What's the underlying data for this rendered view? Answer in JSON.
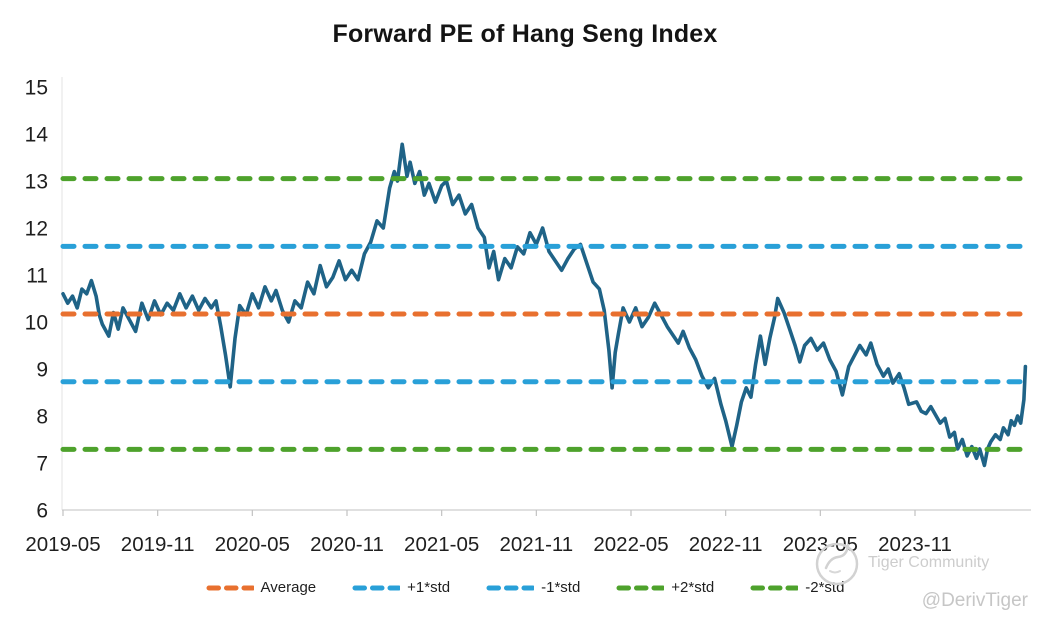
{
  "header": {
    "title": "Forward PE of Hang Seng Index"
  },
  "chart_data": {
    "type": "line",
    "title": "Forward PE of Hang Seng Index",
    "xlabel": "",
    "ylabel": "",
    "ylim": [
      6,
      15
    ],
    "grid": false,
    "legend_position": "bottom",
    "y_ticks": [
      15,
      14,
      13,
      12,
      11,
      10,
      9,
      8,
      7,
      6
    ],
    "x_ticks": [
      {
        "m": 0,
        "label": "2019-05"
      },
      {
        "m": 6,
        "label": "2019-11"
      },
      {
        "m": 12,
        "label": "2020-05"
      },
      {
        "m": 18,
        "label": "2020-11"
      },
      {
        "m": 24,
        "label": "2021-05"
      },
      {
        "m": 30,
        "label": "2021-11"
      },
      {
        "m": 36,
        "label": "2022-05"
      },
      {
        "m": 42,
        "label": "2022-11"
      },
      {
        "m": 48,
        "label": "2023-05"
      },
      {
        "m": 54,
        "label": "2023-11"
      }
    ],
    "ref_lines": [
      {
        "name": "Average",
        "value": 10.17,
        "color": "#e8702f"
      },
      {
        "name": "+1*std",
        "value": 11.61,
        "color": "#29a0d8"
      },
      {
        "name": "-1*std",
        "value": 8.73,
        "color": "#29a0d8"
      },
      {
        "name": "+2*std",
        "value": 13.05,
        "color": "#4ea22c"
      },
      {
        "name": "-2*std",
        "value": 7.29,
        "color": "#4ea22c"
      }
    ],
    "series": [
      {
        "name": "Forward PE",
        "color": "#1f6387",
        "points": [
          [
            0,
            10.6
          ],
          [
            0.3,
            10.4
          ],
          [
            0.6,
            10.55
          ],
          [
            0.9,
            10.3
          ],
          [
            1.2,
            10.7
          ],
          [
            1.5,
            10.6
          ],
          [
            1.8,
            10.88
          ],
          [
            2.1,
            10.55
          ],
          [
            2.3,
            10.15
          ],
          [
            2.5,
            9.95
          ],
          [
            2.9,
            9.7
          ],
          [
            3.2,
            10.2
          ],
          [
            3.5,
            9.85
          ],
          [
            3.8,
            10.3
          ],
          [
            4.2,
            10.05
          ],
          [
            4.6,
            9.8
          ],
          [
            5.0,
            10.4
          ],
          [
            5.4,
            10.05
          ],
          [
            5.8,
            10.45
          ],
          [
            6.2,
            10.15
          ],
          [
            6.6,
            10.4
          ],
          [
            7.0,
            10.25
          ],
          [
            7.4,
            10.6
          ],
          [
            7.8,
            10.3
          ],
          [
            8.2,
            10.55
          ],
          [
            8.6,
            10.25
          ],
          [
            9.0,
            10.5
          ],
          [
            9.4,
            10.3
          ],
          [
            9.7,
            10.45
          ],
          [
            10.0,
            9.9
          ],
          [
            10.3,
            9.3
          ],
          [
            10.6,
            8.62
          ],
          [
            10.9,
            9.65
          ],
          [
            11.2,
            10.35
          ],
          [
            11.6,
            10.15
          ],
          [
            12.0,
            10.6
          ],
          [
            12.4,
            10.3
          ],
          [
            12.8,
            10.75
          ],
          [
            13.2,
            10.45
          ],
          [
            13.5,
            10.67
          ],
          [
            13.9,
            10.25
          ],
          [
            14.3,
            10.0
          ],
          [
            14.7,
            10.45
          ],
          [
            15.1,
            10.3
          ],
          [
            15.5,
            10.85
          ],
          [
            15.9,
            10.6
          ],
          [
            16.3,
            11.2
          ],
          [
            16.7,
            10.75
          ],
          [
            17.1,
            10.95
          ],
          [
            17.5,
            11.3
          ],
          [
            17.9,
            10.9
          ],
          [
            18.3,
            11.1
          ],
          [
            18.7,
            10.9
          ],
          [
            19.1,
            11.45
          ],
          [
            19.5,
            11.7
          ],
          [
            19.9,
            12.15
          ],
          [
            20.3,
            12.0
          ],
          [
            20.7,
            12.85
          ],
          [
            21.0,
            13.2
          ],
          [
            21.2,
            13.0
          ],
          [
            21.5,
            13.78
          ],
          [
            21.8,
            13.1
          ],
          [
            22.0,
            13.4
          ],
          [
            22.3,
            12.95
          ],
          [
            22.6,
            13.2
          ],
          [
            22.9,
            12.7
          ],
          [
            23.2,
            12.95
          ],
          [
            23.6,
            12.55
          ],
          [
            24.0,
            12.9
          ],
          [
            24.3,
            13.0
          ],
          [
            24.7,
            12.5
          ],
          [
            25.1,
            12.7
          ],
          [
            25.5,
            12.3
          ],
          [
            25.9,
            12.5
          ],
          [
            26.3,
            12.0
          ],
          [
            26.7,
            11.8
          ],
          [
            27.0,
            11.15
          ],
          [
            27.3,
            11.5
          ],
          [
            27.6,
            10.9
          ],
          [
            28.0,
            11.35
          ],
          [
            28.4,
            11.15
          ],
          [
            28.8,
            11.6
          ],
          [
            29.2,
            11.45
          ],
          [
            29.6,
            11.9
          ],
          [
            30.0,
            11.65
          ],
          [
            30.4,
            12.0
          ],
          [
            30.8,
            11.5
          ],
          [
            31.2,
            11.3
          ],
          [
            31.6,
            11.1
          ],
          [
            32.0,
            11.35
          ],
          [
            32.4,
            11.55
          ],
          [
            32.8,
            11.65
          ],
          [
            33.2,
            11.25
          ],
          [
            33.6,
            10.85
          ],
          [
            34.0,
            10.7
          ],
          [
            34.3,
            10.25
          ],
          [
            34.6,
            9.4
          ],
          [
            34.8,
            8.6
          ],
          [
            35.0,
            9.35
          ],
          [
            35.2,
            9.75
          ],
          [
            35.5,
            10.3
          ],
          [
            35.9,
            10.0
          ],
          [
            36.3,
            10.3
          ],
          [
            36.7,
            9.9
          ],
          [
            37.1,
            10.1
          ],
          [
            37.5,
            10.4
          ],
          [
            37.9,
            10.15
          ],
          [
            38.3,
            9.9
          ],
          [
            38.7,
            9.7
          ],
          [
            39.0,
            9.55
          ],
          [
            39.3,
            9.8
          ],
          [
            39.7,
            9.45
          ],
          [
            40.1,
            9.2
          ],
          [
            40.5,
            8.85
          ],
          [
            40.9,
            8.6
          ],
          [
            41.3,
            8.8
          ],
          [
            41.7,
            8.25
          ],
          [
            42.0,
            7.9
          ],
          [
            42.4,
            7.35
          ],
          [
            42.7,
            7.8
          ],
          [
            43.0,
            8.3
          ],
          [
            43.3,
            8.6
          ],
          [
            43.6,
            8.4
          ],
          [
            43.9,
            9.1
          ],
          [
            44.2,
            9.7
          ],
          [
            44.5,
            9.1
          ],
          [
            44.8,
            9.65
          ],
          [
            45.1,
            10.1
          ],
          [
            45.3,
            10.5
          ],
          [
            45.7,
            10.2
          ],
          [
            46.0,
            9.9
          ],
          [
            46.4,
            9.5
          ],
          [
            46.7,
            9.15
          ],
          [
            47.0,
            9.5
          ],
          [
            47.4,
            9.65
          ],
          [
            47.8,
            9.4
          ],
          [
            48.2,
            9.55
          ],
          [
            48.6,
            9.2
          ],
          [
            49.0,
            8.95
          ],
          [
            49.4,
            8.45
          ],
          [
            49.8,
            9.05
          ],
          [
            50.1,
            9.25
          ],
          [
            50.5,
            9.5
          ],
          [
            50.9,
            9.3
          ],
          [
            51.2,
            9.55
          ],
          [
            51.6,
            9.1
          ],
          [
            52.0,
            8.85
          ],
          [
            52.3,
            9.0
          ],
          [
            52.6,
            8.7
          ],
          [
            53.0,
            8.9
          ],
          [
            53.3,
            8.6
          ],
          [
            53.6,
            8.25
          ],
          [
            54.1,
            8.3
          ],
          [
            54.4,
            8.1
          ],
          [
            54.7,
            8.05
          ],
          [
            55.0,
            8.2
          ],
          [
            55.6,
            7.85
          ],
          [
            55.9,
            7.95
          ],
          [
            56.2,
            7.55
          ],
          [
            56.5,
            7.65
          ],
          [
            56.7,
            7.3
          ],
          [
            57.0,
            7.5
          ],
          [
            57.3,
            7.15
          ],
          [
            57.6,
            7.35
          ],
          [
            57.9,
            7.1
          ],
          [
            58.1,
            7.3
          ],
          [
            58.4,
            6.95
          ],
          [
            58.6,
            7.3
          ],
          [
            58.8,
            7.45
          ],
          [
            59.1,
            7.6
          ],
          [
            59.4,
            7.5
          ],
          [
            59.6,
            7.75
          ],
          [
            59.9,
            7.6
          ],
          [
            60.1,
            7.9
          ],
          [
            60.3,
            7.8
          ],
          [
            60.5,
            8.0
          ],
          [
            60.7,
            7.85
          ],
          [
            60.9,
            8.35
          ],
          [
            61.0,
            9.05
          ]
        ]
      }
    ],
    "legend": [
      {
        "label": "Average",
        "color": "#e8702f"
      },
      {
        "label": "+1*std",
        "color": "#29a0d8"
      },
      {
        "label": "-1*std",
        "color": "#29a0d8"
      },
      {
        "label": "+2*std",
        "color": "#4ea22c"
      },
      {
        "label": "-2*std",
        "color": "#4ea22c"
      }
    ]
  },
  "watermark": {
    "community": "Tiger Community",
    "handle": "@DerivTiger"
  }
}
